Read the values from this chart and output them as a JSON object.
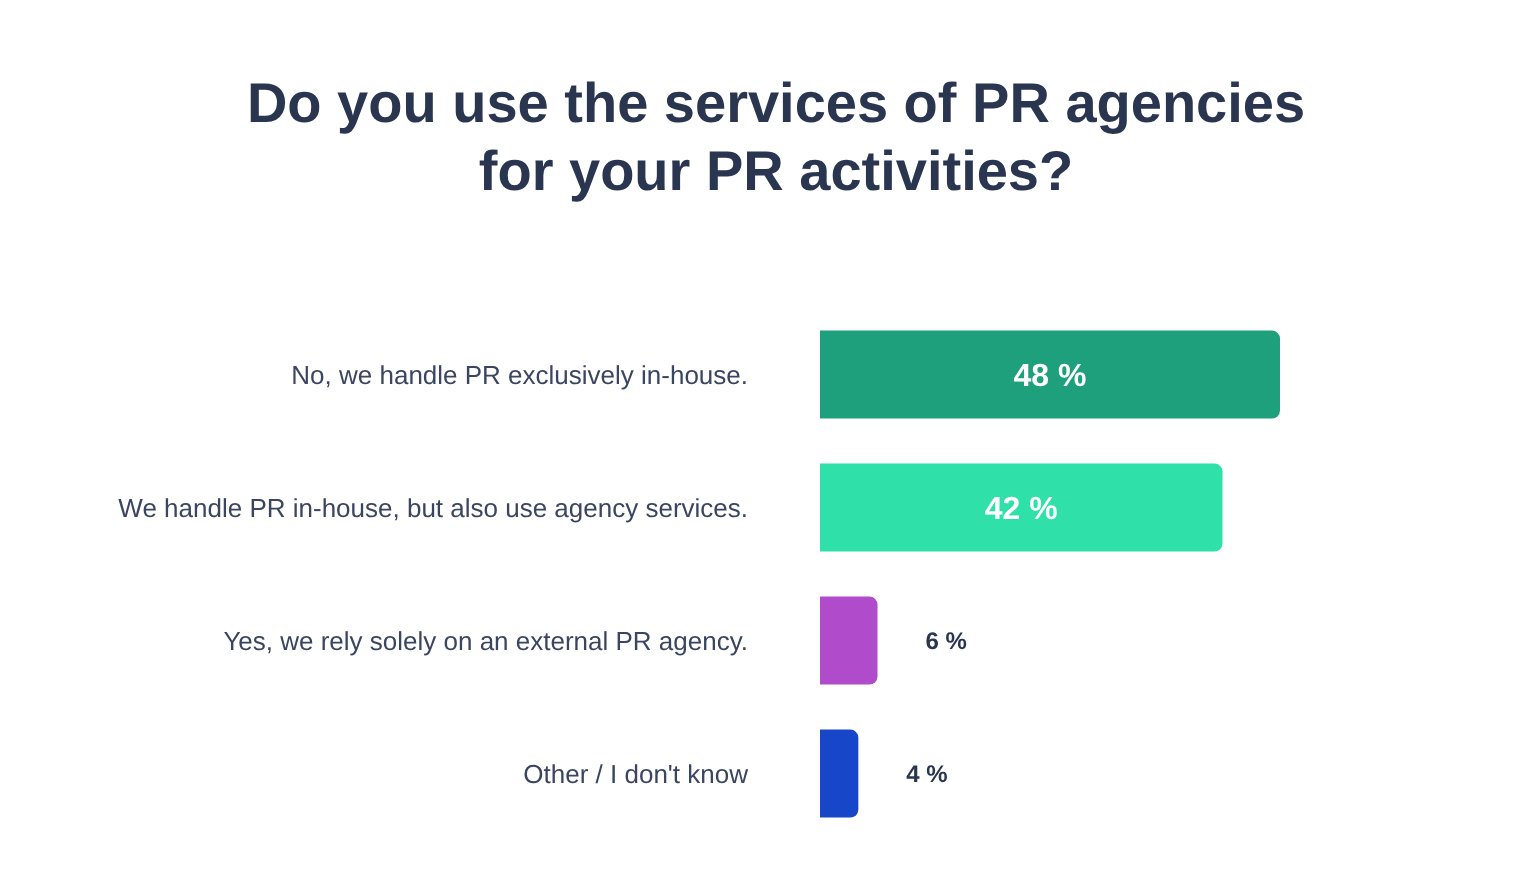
{
  "chart_data": {
    "type": "bar",
    "orientation": "horizontal",
    "title": "Do you use the services of PR agencies\nfor your PR activities?",
    "categories": [
      "No, we handle PR exclusively in-house.",
      "We handle PR in-house, but also use agency services.",
      "Yes, we rely solely on an external PR agency.",
      "Other / I don't know"
    ],
    "values": [
      48,
      42,
      6,
      4
    ],
    "colors": [
      "#1fa07c",
      "#2fe0a9",
      "#b04bcb",
      "#1846c9"
    ],
    "value_labels": [
      "48 %",
      "42 %",
      "6 %",
      "4 %"
    ],
    "grid": false,
    "legend": false
  }
}
